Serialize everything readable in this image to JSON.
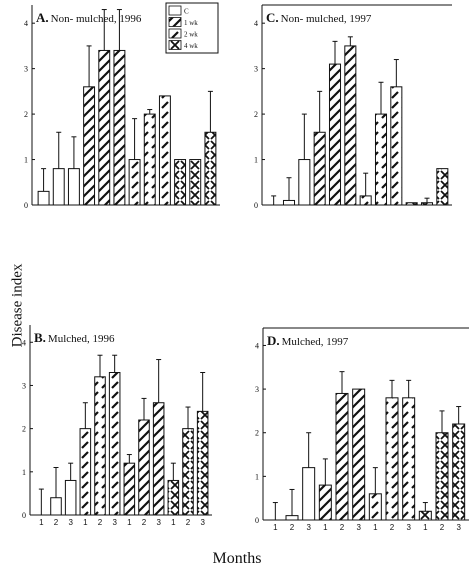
{
  "ylabel": "Disease index",
  "xlabel": "Months",
  "legend": [
    {
      "label": "C",
      "pattern": "empty"
    },
    {
      "label": "1 wk",
      "pattern": "back"
    },
    {
      "label": "2 wk",
      "pattern": "fwd"
    },
    {
      "label": "4 wk",
      "pattern": "cross"
    }
  ],
  "chart_data": [
    {
      "type": "bar",
      "letter": "A.",
      "title": "Non- mulched, 1996",
      "ylim": [
        0,
        4.4
      ],
      "yticks": [
        0,
        1,
        2,
        3,
        4
      ],
      "groups": [
        {
          "pattern": "empty",
          "months": [
            "1",
            "2",
            "3"
          ],
          "values": [
            0.3,
            0.8,
            0.8
          ],
          "errors": [
            0.5,
            0.8,
            0.7
          ]
        },
        {
          "pattern": "back",
          "months": [
            "1",
            "2",
            "3"
          ],
          "values": [
            2.6,
            3.4,
            3.4
          ],
          "errors": [
            0.9,
            0.9,
            0.9
          ]
        },
        {
          "pattern": "fwd",
          "months": [
            "1",
            "2",
            "3"
          ],
          "values": [
            1.0,
            2.0,
            2.4
          ],
          "errors": [
            0.9,
            0.1,
            0.0
          ]
        },
        {
          "pattern": "cross",
          "months": [
            "1",
            "2",
            "3"
          ],
          "values": [
            1.0,
            1.0,
            1.6
          ],
          "errors": [
            0.0,
            0.0,
            0.9
          ]
        }
      ]
    },
    {
      "type": "bar",
      "letter": "C.",
      "title": "Non- mulched, 1997",
      "ylim": [
        0,
        4.4
      ],
      "yticks": [
        0,
        1,
        2,
        3,
        4
      ],
      "groups": [
        {
          "pattern": "empty",
          "months": [
            "1",
            "2",
            "3"
          ],
          "values": [
            0.0,
            0.1,
            1.0
          ],
          "errors": [
            0.2,
            0.5,
            1.0
          ]
        },
        {
          "pattern": "back",
          "months": [
            "1",
            "2",
            "3"
          ],
          "values": [
            1.6,
            3.1,
            3.5
          ],
          "errors": [
            0.9,
            0.5,
            0.2
          ]
        },
        {
          "pattern": "fwd",
          "months": [
            "1",
            "2",
            "3"
          ],
          "values": [
            0.2,
            2.0,
            2.6
          ],
          "errors": [
            0.5,
            0.7,
            0.6
          ]
        },
        {
          "pattern": "cross",
          "months": [
            "1",
            "2",
            "3"
          ],
          "values": [
            0.05,
            0.05,
            0.8
          ],
          "errors": [
            0.0,
            0.1,
            0.0
          ]
        }
      ]
    },
    {
      "type": "bar",
      "letter": "B.",
      "title": "Mulched, 1996",
      "ylim": [
        0,
        4.4
      ],
      "yticks": [
        0,
        1,
        2,
        3,
        4
      ],
      "months_shown": true,
      "groups": [
        {
          "pattern": "empty",
          "months": [
            "1",
            "2",
            "3"
          ],
          "values": [
            0.0,
            0.4,
            0.8
          ],
          "errors": [
            0.6,
            0.7,
            0.4
          ]
        },
        {
          "pattern": "fwd",
          "months": [
            "1",
            "2",
            "3"
          ],
          "values": [
            2.0,
            3.2,
            3.3
          ],
          "errors": [
            0.6,
            0.5,
            0.4
          ]
        },
        {
          "pattern": "back",
          "months": [
            "1",
            "2",
            "3"
          ],
          "values": [
            1.2,
            2.2,
            2.6
          ],
          "errors": [
            0.2,
            0.5,
            1.0
          ]
        },
        {
          "pattern": "cross",
          "months": [
            "1",
            "2",
            "3"
          ],
          "values": [
            0.8,
            2.0,
            2.4
          ],
          "errors": [
            0.4,
            0.5,
            0.9
          ]
        }
      ]
    },
    {
      "type": "bar",
      "letter": "D.",
      "title": "Mulched, 1997",
      "ylim": [
        0,
        4.4
      ],
      "yticks": [
        0,
        1,
        2,
        3,
        4
      ],
      "months_shown": true,
      "groups": [
        {
          "pattern": "empty",
          "months": [
            "1",
            "2",
            "3"
          ],
          "values": [
            0.0,
            0.1,
            1.2
          ],
          "errors": [
            0.4,
            0.6,
            0.8
          ]
        },
        {
          "pattern": "back",
          "months": [
            "1",
            "2",
            "3"
          ],
          "values": [
            0.8,
            2.9,
            3.0
          ],
          "errors": [
            0.6,
            0.5,
            0.0
          ]
        },
        {
          "pattern": "fwd",
          "months": [
            "1",
            "2",
            "3"
          ],
          "values": [
            0.6,
            2.8,
            2.8
          ],
          "errors": [
            0.6,
            0.4,
            0.4
          ]
        },
        {
          "pattern": "cross",
          "months": [
            "1",
            "2",
            "3"
          ],
          "values": [
            0.2,
            2.0,
            2.2
          ],
          "errors": [
            0.2,
            0.5,
            0.4
          ]
        }
      ]
    }
  ]
}
